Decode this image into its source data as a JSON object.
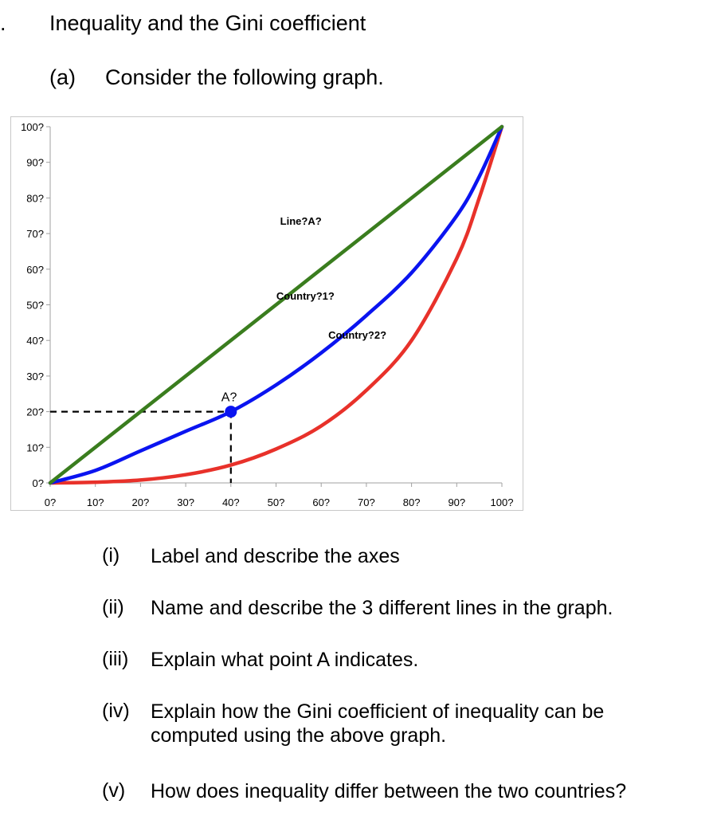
{
  "header": {
    "lead": ".",
    "title": "Inequality and the Gini coefficient",
    "part_label": "(a)",
    "part_text": "Consider the following graph."
  },
  "chart_data": {
    "type": "line",
    "x_ticks": [
      "0?",
      "10?",
      "20?",
      "30?",
      "40?",
      "50?",
      "60?",
      "70?",
      "80?",
      "90?",
      "100?"
    ],
    "y_ticks": [
      "0?",
      "10?",
      "20?",
      "30?",
      "40?",
      "50?",
      "60?",
      "70?",
      "80?",
      "90?",
      "100?"
    ],
    "xlim": [
      0,
      100
    ],
    "ylim": [
      0,
      100
    ],
    "grid": false,
    "series": [
      {
        "name": "Line?A?",
        "color": "#3a7d1e",
        "points": [
          [
            0,
            0
          ],
          [
            100,
            100
          ]
        ]
      },
      {
        "name": "Country?1?",
        "color": "#0a14f0",
        "points": [
          [
            0,
            0
          ],
          [
            10,
            3.5
          ],
          [
            20,
            9
          ],
          [
            30,
            14.5
          ],
          [
            40,
            20
          ],
          [
            50,
            27.5
          ],
          [
            60,
            36.5
          ],
          [
            70,
            47
          ],
          [
            80,
            59
          ],
          [
            90,
            75
          ],
          [
            95,
            86
          ],
          [
            100,
            100
          ]
        ]
      },
      {
        "name": "Country?2?",
        "color": "#e8312a",
        "points": [
          [
            0,
            0
          ],
          [
            10,
            0.2
          ],
          [
            20,
            0.8
          ],
          [
            30,
            2.3
          ],
          [
            40,
            5
          ],
          [
            50,
            9.5
          ],
          [
            60,
            16
          ],
          [
            70,
            26
          ],
          [
            80,
            40
          ],
          [
            90,
            63
          ],
          [
            95,
            80
          ],
          [
            100,
            100
          ]
        ]
      }
    ],
    "point_A": {
      "label": "A?",
      "x": 40,
      "y": 20,
      "color": "#0a14f0"
    },
    "reference_line_color": "#000000"
  },
  "questions": [
    {
      "num": "(i)",
      "text": "Label and describe the axes"
    },
    {
      "num": "(ii)",
      "text": "Name and describe the 3 different lines in the graph."
    },
    {
      "num": "(iii)",
      "text": "Explain what point A indicates."
    },
    {
      "num": "(iv)",
      "text": "Explain how the Gini coefficient of inequality can be",
      "text2": "computed using the above graph."
    },
    {
      "num": "(v)",
      "text": "How does inequality differ between the two countries?"
    }
  ]
}
